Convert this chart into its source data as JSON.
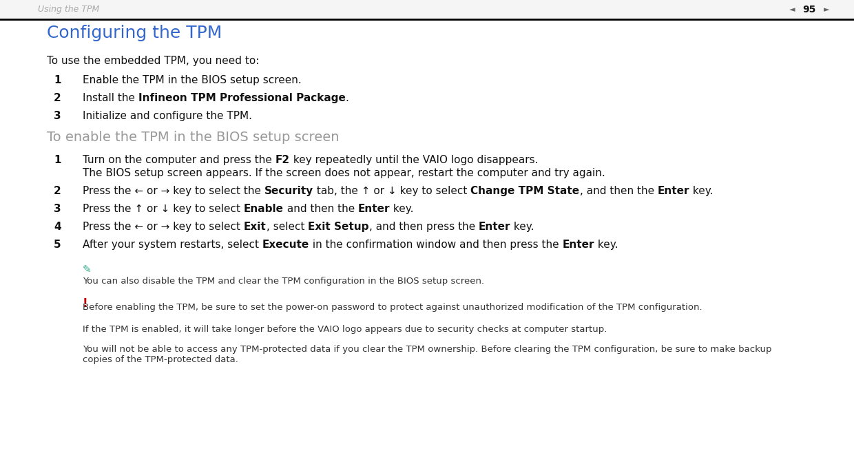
{
  "bg_color": "#ffffff",
  "header_text": "Using the TPM",
  "header_text_color": "#aaaaaa",
  "page_number": "95",
  "header_line_color": "#000000",
  "title": "Configuring the TPM",
  "title_color": "#3366cc",
  "section2_title": "To enable the TPM in the BIOS setup screen",
  "section2_color": "#999999",
  "warning_color": "#cc0000",
  "pencil_color": "#2eaa88",
  "text_color": "#111111",
  "note_color": "#333333"
}
